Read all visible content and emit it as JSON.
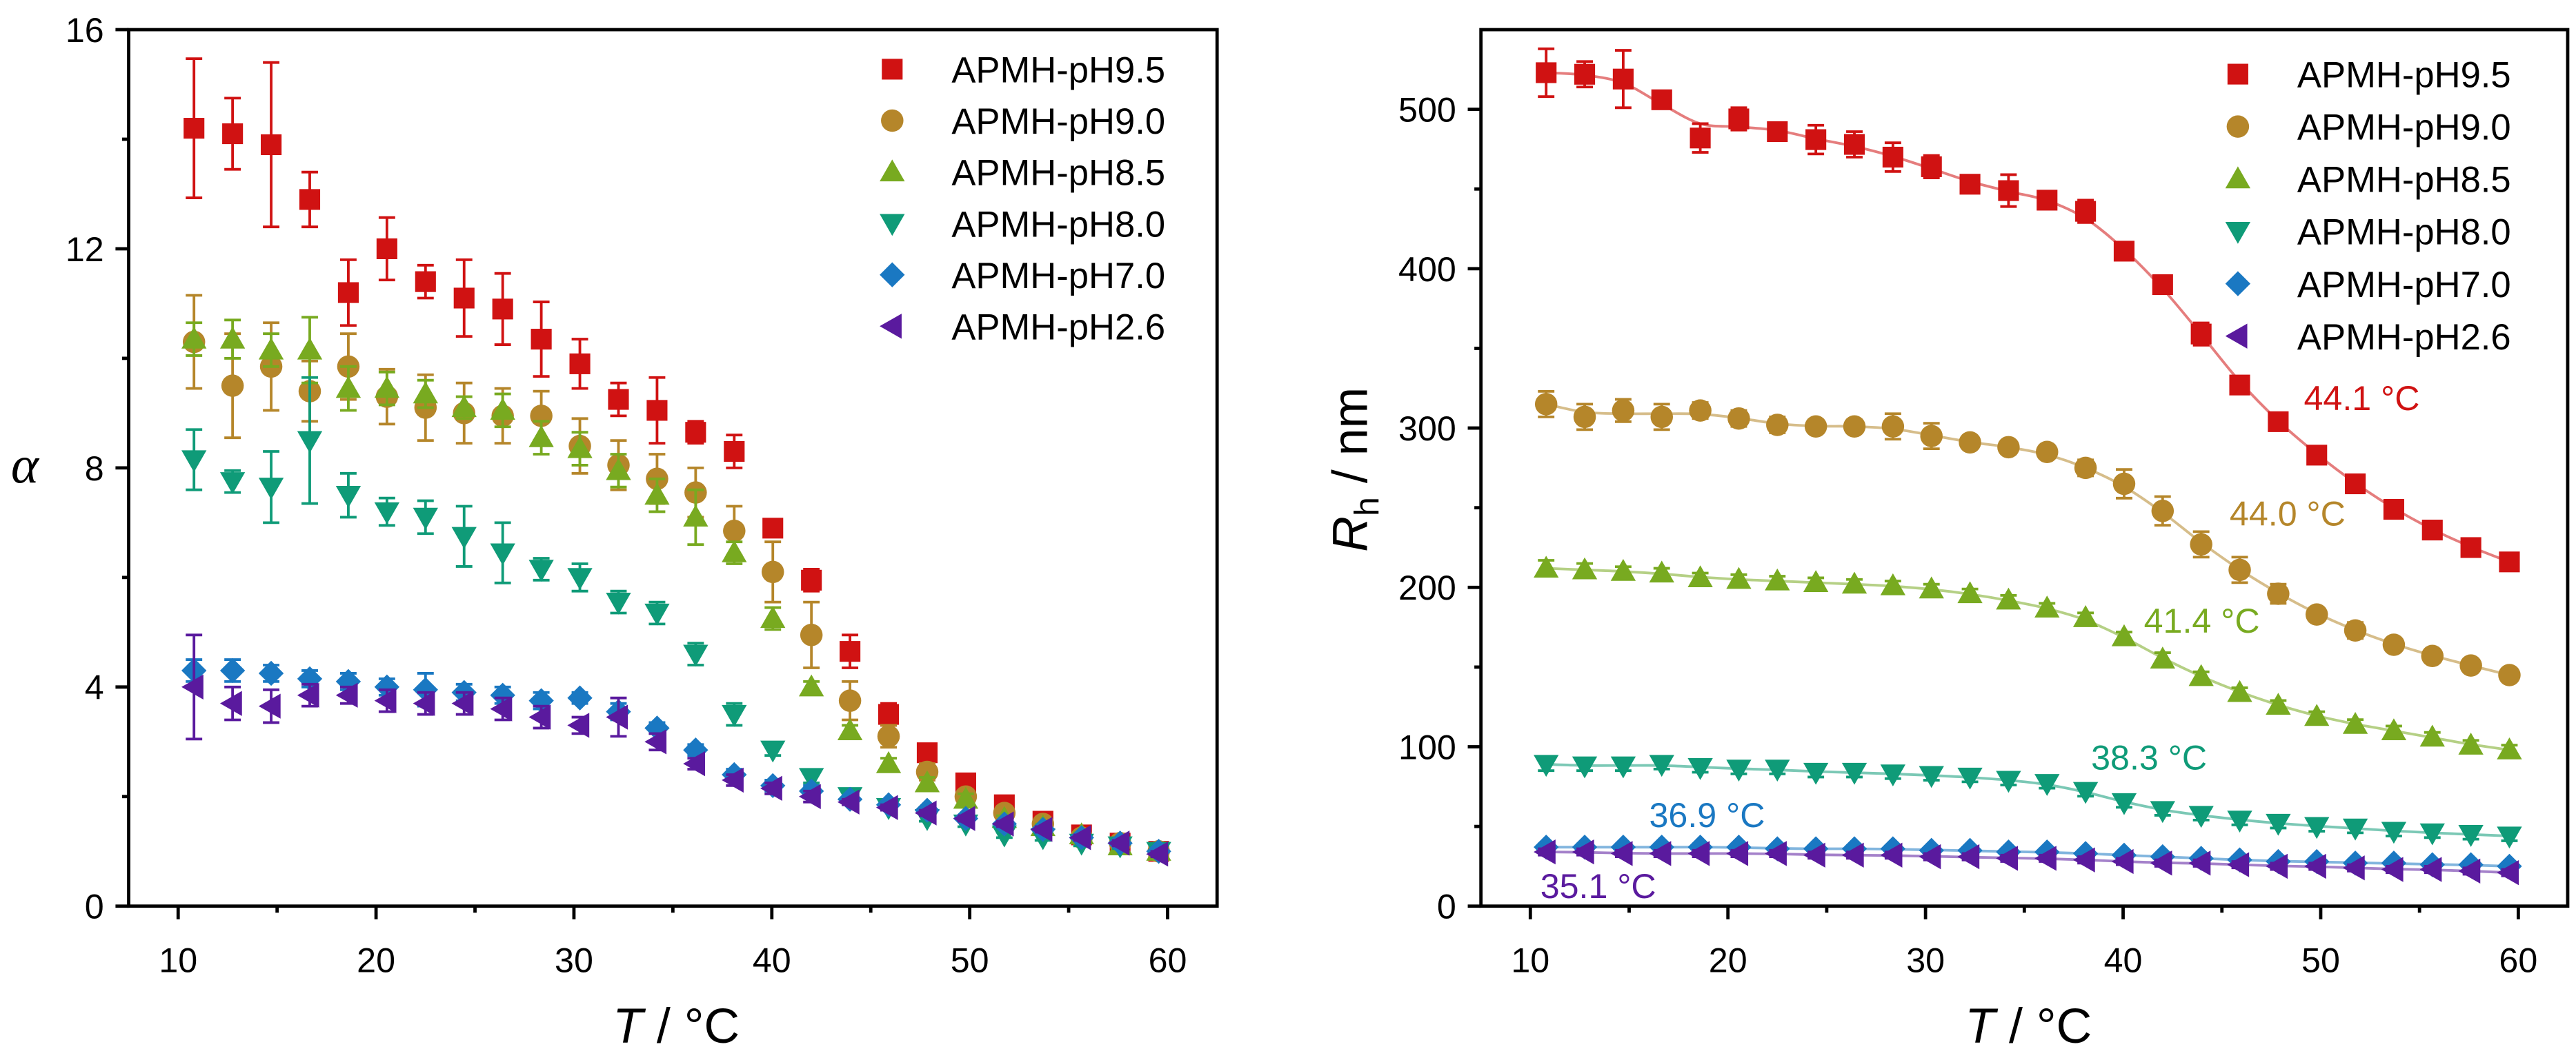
{
  "chart_data": [
    {
      "type": "scatter",
      "panel": "left",
      "xlabel": {
        "symbol": "T",
        "unit": " / °C"
      },
      "ylabel": {
        "symbol": "α"
      },
      "xlim": [
        7.5,
        62.5
      ],
      "ylim": [
        0,
        16
      ],
      "xticks": [
        10,
        20,
        30,
        40,
        50,
        60
      ],
      "yticks": [
        0,
        4,
        8,
        12,
        16
      ],
      "grid": false,
      "legend_position": "top-right",
      "x": [
        10.8,
        12.75,
        14.7,
        16.65,
        18.6,
        20.55,
        22.5,
        24.45,
        26.4,
        28.35,
        30.3,
        32.25,
        34.2,
        36.15,
        38.1,
        40.05,
        42.0,
        43.95,
        45.9,
        47.85,
        49.8,
        51.75,
        53.7,
        55.65,
        57.6,
        59.55
      ],
      "series": [
        {
          "name": "APMH-pH9.5",
          "color": "#d01212",
          "marker": "square",
          "values": [
            14.2,
            14.1,
            13.9,
            12.9,
            11.2,
            12.0,
            11.4,
            11.1,
            10.9,
            10.35,
            9.9,
            9.25,
            9.05,
            8.65,
            8.3,
            6.9,
            5.95,
            4.65,
            3.5,
            2.8,
            2.25,
            1.85,
            1.55,
            1.3,
            1.15,
            1.0
          ],
          "errors": [
            1.27,
            0.65,
            1.5,
            0.5,
            0.6,
            0.57,
            0.3,
            0.7,
            0.65,
            0.68,
            0.45,
            0.3,
            0.6,
            0.2,
            0.3,
            0.15,
            0.2,
            0.3,
            0.2,
            0.1,
            0.1,
            0.1,
            0.1,
            0.05,
            0.05,
            0.05
          ]
        },
        {
          "name": "APMH-pH9.0",
          "color": "#b5862a",
          "marker": "circle",
          "values": [
            10.3,
            9.5,
            9.85,
            9.4,
            9.85,
            9.3,
            9.1,
            9.0,
            8.95,
            8.95,
            8.4,
            8.05,
            7.8,
            7.55,
            6.85,
            6.1,
            4.95,
            3.75,
            3.1,
            2.45,
            2.0,
            1.7,
            1.5,
            1.25,
            1.15,
            1.0
          ],
          "errors": [
            0.85,
            0.95,
            0.8,
            0.55,
            0.6,
            0.5,
            0.6,
            0.55,
            0.5,
            0.45,
            0.5,
            0.45,
            0.45,
            0.45,
            0.45,
            0.55,
            0.6,
            0.35,
            0.2,
            0.15,
            0.1,
            0.1,
            0.1,
            0.05,
            0.05,
            0.05
          ]
        },
        {
          "name": "APMH-pH8.5",
          "color": "#78aa20",
          "marker": "triangle-up",
          "values": [
            10.35,
            10.35,
            10.15,
            10.15,
            9.45,
            9.45,
            9.35,
            9.1,
            9.05,
            8.55,
            8.35,
            7.95,
            7.5,
            7.1,
            6.45,
            5.25,
            4.0,
            3.2,
            2.6,
            2.25,
            1.95,
            1.6,
            1.45,
            1.3,
            1.1,
            1.0
          ],
          "errors": [
            0.3,
            0.35,
            0.3,
            0.6,
            0.4,
            0.3,
            0.25,
            0.2,
            0.3,
            0.3,
            0.3,
            0.3,
            0.3,
            0.5,
            0.2,
            0.2,
            0.1,
            0.1,
            0.1,
            0.1,
            0.1,
            0.05,
            0.05,
            0.05,
            0.05,
            0.05
          ]
        },
        {
          "name": "APMH-pH8.0",
          "color": "#0f9b78",
          "marker": "triangle-down",
          "values": [
            8.15,
            7.75,
            7.65,
            8.5,
            7.5,
            7.2,
            7.1,
            6.75,
            6.45,
            6.15,
            6.0,
            5.55,
            5.35,
            4.6,
            3.5,
            2.85,
            2.35,
            2.0,
            1.8,
            1.6,
            1.5,
            1.3,
            1.25,
            1.15,
            1.1,
            1.0
          ],
          "errors": [
            0.55,
            0.2,
            0.65,
            1.15,
            0.4,
            0.25,
            0.3,
            0.55,
            0.55,
            0.2,
            0.25,
            0.2,
            0.2,
            0.2,
            0.2,
            0.1,
            0.1,
            0.05,
            0.05,
            0.05,
            0.05,
            0.05,
            0.05,
            0.05,
            0.05,
            0.05
          ]
        },
        {
          "name": "APMH-pH7.0",
          "color": "#1a78c2",
          "marker": "diamond",
          "values": [
            4.3,
            4.3,
            4.25,
            4.15,
            4.1,
            4.0,
            3.95,
            3.9,
            3.85,
            3.75,
            3.8,
            3.55,
            3.25,
            2.85,
            2.4,
            2.2,
            2.1,
            1.95,
            1.85,
            1.75,
            1.6,
            1.5,
            1.4,
            1.25,
            1.15,
            1.0
          ],
          "errors": [
            0.2,
            0.2,
            0.15,
            0.15,
            0.15,
            0.15,
            0.3,
            0.15,
            0.15,
            0.15,
            0.1,
            0.15,
            0.1,
            0.1,
            0.1,
            0.1,
            0.1,
            0.05,
            0.05,
            0.05,
            0.05,
            0.05,
            0.05,
            0.05,
            0.05,
            0.05
          ]
        },
        {
          "name": "APMH-pH2.6",
          "color": "#5a1a9e",
          "marker": "triangle-left",
          "values": [
            4.0,
            3.7,
            3.65,
            3.85,
            3.85,
            3.75,
            3.7,
            3.7,
            3.6,
            3.45,
            3.3,
            3.45,
            3.0,
            2.6,
            2.3,
            2.15,
            2.0,
            1.9,
            1.8,
            1.7,
            1.6,
            1.5,
            1.4,
            1.25,
            1.15,
            0.95
          ],
          "errors": [
            0.95,
            0.3,
            0.3,
            0.2,
            0.15,
            0.2,
            0.2,
            0.2,
            0.2,
            0.2,
            0.15,
            0.35,
            0.15,
            0.1,
            0.1,
            0.1,
            0.1,
            0.05,
            0.05,
            0.05,
            0.05,
            0.05,
            0.05,
            0.05,
            0.05,
            0.05
          ]
        }
      ]
    },
    {
      "type": "scatter",
      "panel": "right",
      "xlabel": {
        "symbol": "T",
        "unit": " / °C"
      },
      "ylabel": {
        "symbol": "R",
        "subscript": "h",
        "unit": " / nm"
      },
      "xlim": [
        7.5,
        62.5
      ],
      "ylim": [
        0,
        550
      ],
      "xticks": [
        10,
        20,
        30,
        40,
        50,
        60
      ],
      "yticks": [
        0,
        100,
        200,
        300,
        400,
        500
      ],
      "grid": false,
      "legend_position": "top-right",
      "fit_lines": true,
      "x": [
        10.8,
        12.75,
        14.7,
        16.65,
        18.6,
        20.55,
        22.5,
        24.45,
        26.4,
        28.35,
        30.3,
        32.25,
        34.2,
        36.15,
        38.1,
        40.05,
        42.0,
        43.95,
        45.9,
        47.85,
        49.8,
        51.75,
        53.7,
        55.65,
        57.6,
        59.55
      ],
      "series": [
        {
          "name": "APMH-pH9.5",
          "color": "#d01212",
          "marker": "square",
          "values": [
            523,
            522,
            519,
            506,
            482,
            494,
            486,
            481,
            478,
            470,
            464,
            453,
            449,
            443,
            436,
            411,
            390,
            359,
            327,
            304,
            283,
            265,
            249,
            236,
            225,
            216
          ],
          "errors": [
            15,
            8,
            18,
            5,
            9,
            7,
            5,
            9,
            8,
            9,
            7,
            4,
            10,
            5,
            7,
            4,
            4,
            7,
            4,
            4,
            4,
            4,
            4,
            3,
            3,
            3
          ]
        },
        {
          "name": "APMH-pH9.0",
          "color": "#b5862a",
          "marker": "circle",
          "values": [
            315,
            307,
            311,
            307,
            311,
            306,
            302,
            301,
            301,
            301,
            295,
            291,
            288,
            285,
            275,
            265,
            248,
            227,
            211,
            196,
            183,
            173,
            164,
            157,
            151,
            145
          ],
          "errors": [
            8,
            8,
            7,
            8,
            5,
            5,
            5,
            4,
            4,
            8,
            8,
            4,
            4,
            4,
            5,
            9,
            9,
            8,
            8,
            6,
            4,
            5,
            3,
            3,
            3,
            3
          ]
        },
        {
          "name": "APMH-pH8.5",
          "color": "#78aa20",
          "marker": "triangle-up",
          "values": [
            212,
            211,
            210,
            209,
            206,
            205,
            204,
            203,
            202,
            201,
            199,
            196,
            192,
            187,
            181,
            169,
            155,
            144,
            134,
            126,
            119,
            114,
            110,
            106,
            101,
            98
          ],
          "errors": [
            5,
            4,
            3,
            3,
            3,
            3,
            3,
            3,
            3,
            3,
            3,
            3,
            3,
            3,
            3,
            3,
            4,
            3,
            3,
            3,
            3,
            3,
            3,
            3,
            3,
            3
          ]
        },
        {
          "name": "APMH-pH8.0",
          "color": "#0f9b78",
          "marker": "triangle-down",
          "values": [
            89,
            88,
            88,
            89,
            87,
            86,
            86,
            84,
            84,
            83,
            82,
            81,
            79,
            77,
            72,
            65,
            60,
            57,
            54,
            52,
            50,
            49,
            47,
            46,
            45,
            44
          ],
          "errors": [
            4,
            3,
            3,
            3,
            3,
            3,
            3,
            3,
            3,
            3,
            3,
            3,
            3,
            3,
            3,
            3,
            3,
            3,
            3,
            3,
            3,
            3,
            3,
            3,
            3,
            3
          ]
        },
        {
          "name": "APMH-pH7.0",
          "color": "#1a78c2",
          "marker": "diamond",
          "values": [
            37,
            37,
            37,
            37,
            37,
            37,
            36,
            36,
            36,
            36,
            35,
            35,
            34,
            34,
            33,
            32,
            31,
            30,
            29,
            28,
            28,
            27,
            27,
            26,
            26,
            25
          ],
          "errors": [
            2,
            2,
            2,
            2,
            2,
            2,
            2,
            2,
            2,
            2,
            2,
            2,
            2,
            2,
            2,
            2,
            2,
            2,
            2,
            2,
            2,
            2,
            2,
            2,
            2,
            2
          ]
        },
        {
          "name": "APMH-pH2.6",
          "color": "#5a1a9e",
          "marker": "triangle-left",
          "values": [
            34,
            34,
            33,
            33,
            33,
            33,
            33,
            32,
            32,
            32,
            31,
            31,
            30,
            30,
            29,
            28,
            27,
            27,
            26,
            25,
            25,
            24,
            23,
            23,
            22,
            21
          ],
          "errors": [
            2,
            2,
            2,
            2,
            2,
            2,
            2,
            2,
            2,
            2,
            2,
            2,
            2,
            2,
            2,
            2,
            2,
            2,
            2,
            2,
            2,
            2,
            2,
            2,
            2,
            2
          ]
        }
      ],
      "annotations": [
        {
          "text": "44.1 °C",
          "color": "#d01212"
        },
        {
          "text": "44.0 °C",
          "color": "#b5862a"
        },
        {
          "text": "41.4 °C",
          "color": "#78aa20"
        },
        {
          "text": "38.3 °C",
          "color": "#0f9b78"
        },
        {
          "text": "36.9 °C",
          "color": "#1a78c2"
        },
        {
          "text": "35.1 °C",
          "color": "#5a1a9e"
        }
      ]
    }
  ]
}
